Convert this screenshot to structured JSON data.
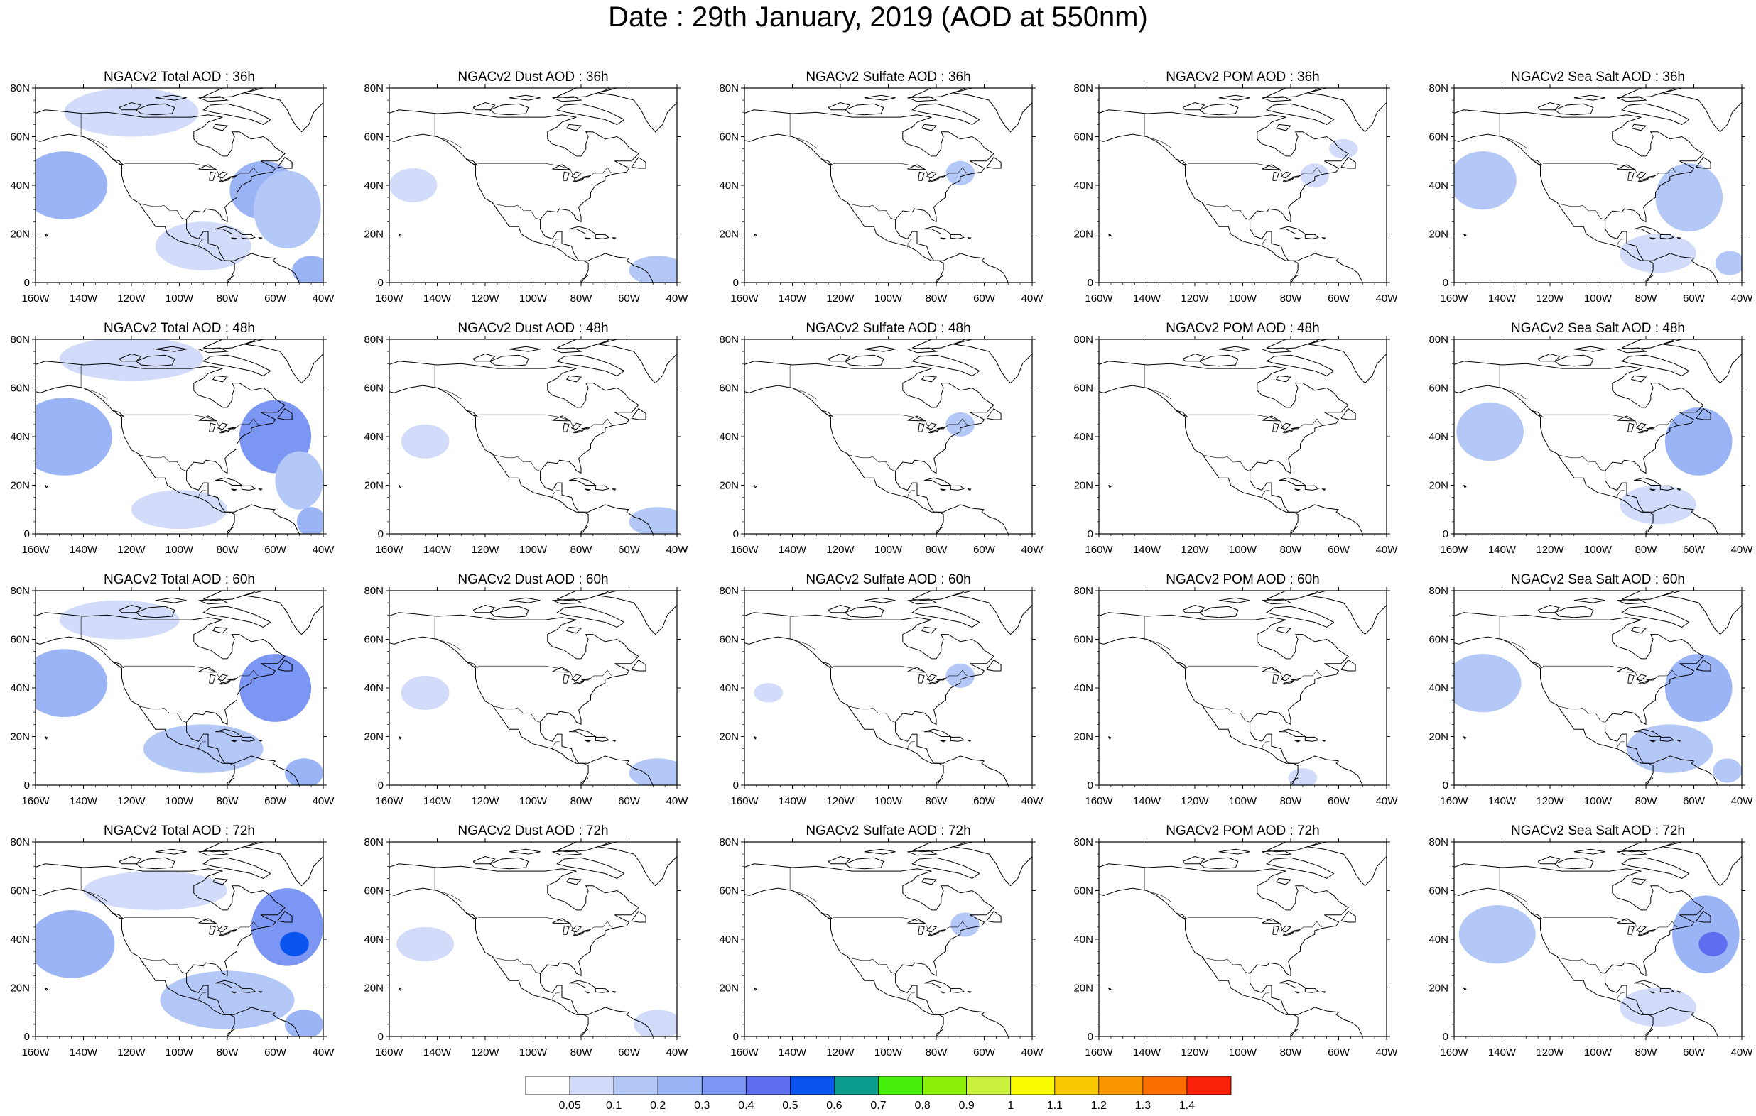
{
  "title": "Date : 29th January, 2019 (AOD at 550nm)",
  "map": {
    "lat_ticks": [
      "80N",
      "60N",
      "40N",
      "20N",
      "0"
    ],
    "lon_ticks": [
      "160W",
      "140W",
      "120W",
      "100W",
      "80W",
      "60W",
      "40W"
    ],
    "lon_range": [
      -160,
      -40
    ],
    "lat_range": [
      0,
      80
    ]
  },
  "panels": [
    {
      "title": "NGACv2 Total AOD : 36h",
      "species": "total",
      "lead": "36h"
    },
    {
      "title": "NGACv2 Dust AOD : 36h",
      "species": "dust",
      "lead": "36h"
    },
    {
      "title": "NGACv2 Sulfate AOD : 36h",
      "species": "sulfate",
      "lead": "36h"
    },
    {
      "title": "NGACv2 POM AOD : 36h",
      "species": "pom",
      "lead": "36h"
    },
    {
      "title": "NGACv2 Sea Salt AOD : 36h",
      "species": "seasalt",
      "lead": "36h"
    },
    {
      "title": "NGACv2 Total AOD : 48h",
      "species": "total",
      "lead": "48h"
    },
    {
      "title": "NGACv2 Dust AOD : 48h",
      "species": "dust",
      "lead": "48h"
    },
    {
      "title": "NGACv2 Sulfate AOD : 48h",
      "species": "sulfate",
      "lead": "48h"
    },
    {
      "title": "NGACv2 POM AOD : 48h",
      "species": "pom",
      "lead": "48h"
    },
    {
      "title": "NGACv2 Sea Salt AOD : 48h",
      "species": "seasalt",
      "lead": "48h"
    },
    {
      "title": "NGACv2 Total AOD : 60h",
      "species": "total",
      "lead": "60h"
    },
    {
      "title": "NGACv2 Dust AOD : 60h",
      "species": "dust",
      "lead": "60h"
    },
    {
      "title": "NGACv2 Sulfate AOD : 60h",
      "species": "sulfate",
      "lead": "60h"
    },
    {
      "title": "NGACv2 POM AOD : 60h",
      "species": "pom",
      "lead": "60h"
    },
    {
      "title": "NGACv2 Sea Salt AOD : 60h",
      "species": "seasalt",
      "lead": "60h"
    },
    {
      "title": "NGACv2 Total AOD : 72h",
      "species": "total",
      "lead": "72h"
    },
    {
      "title": "NGACv2 Dust AOD : 72h",
      "species": "dust",
      "lead": "72h"
    },
    {
      "title": "NGACv2 Sulfate AOD : 72h",
      "species": "sulfate",
      "lead": "72h"
    },
    {
      "title": "NGACv2 POM AOD : 72h",
      "species": "pom",
      "lead": "72h"
    },
    {
      "title": "NGACv2 Sea Salt  AOD : 72h",
      "species": "seasalt",
      "lead": "72h"
    }
  ],
  "colorbar": {
    "colors": [
      "#ffffff",
      "#d2dcfa",
      "#b4c8f8",
      "#9ab4f6",
      "#7c96f4",
      "#5f6ef0",
      "#0a55f0",
      "#0a9b8c",
      "#46f00a",
      "#8cf00a",
      "#c8f03c",
      "#fafa00",
      "#fac800",
      "#fa9600",
      "#fa6e00",
      "#fa230a"
    ],
    "labels": [
      "0.05",
      "0.1",
      "0.2",
      "0.3",
      "0.4",
      "0.5",
      "0.6",
      "0.7",
      "0.8",
      "0.9",
      "1",
      "1.1",
      "1.2",
      "1.3",
      "1.4"
    ]
  },
  "chart_data": {
    "type": "heatmap",
    "title": "Date : 29th January, 2019 (AOD at 550nm)",
    "variable": "AOD at 550nm",
    "x_range": [
      -160,
      -40
    ],
    "y_range": [
      0,
      80
    ],
    "levels": [
      0.05,
      0.1,
      0.2,
      0.3,
      0.4,
      0.5,
      0.6,
      0.7,
      0.8,
      0.9,
      1,
      1.1,
      1.2,
      1.3,
      1.4
    ],
    "blobs": [
      {
        "panel": 0,
        "lon": -148,
        "lat": 40,
        "rlon": 18,
        "rlat": 14,
        "level": 3
      },
      {
        "panel": 0,
        "lon": -65,
        "lat": 38,
        "rlon": 14,
        "rlat": 12,
        "level": 3
      },
      {
        "panel": 0,
        "lon": -55,
        "lat": 30,
        "rlon": 14,
        "rlat": 16,
        "level": 2
      },
      {
        "panel": 0,
        "lon": -120,
        "lat": 70,
        "rlon": 28,
        "rlat": 10,
        "level": 1
      },
      {
        "panel": 0,
        "lon": -90,
        "lat": 15,
        "rlon": 20,
        "rlat": 10,
        "level": 1
      },
      {
        "panel": 0,
        "lon": -45,
        "lat": 5,
        "rlon": 8,
        "rlat": 6,
        "level": 3
      },
      {
        "panel": 1,
        "lon": -150,
        "lat": 40,
        "rlon": 10,
        "rlat": 7,
        "level": 1
      },
      {
        "panel": 1,
        "lon": -48,
        "lat": 5,
        "rlon": 12,
        "rlat": 6,
        "level": 2
      },
      {
        "panel": 2,
        "lon": -70,
        "lat": 45,
        "rlon": 6,
        "rlat": 5,
        "level": 2
      },
      {
        "panel": 3,
        "lon": -70,
        "lat": 44,
        "rlon": 6,
        "rlat": 5,
        "level": 1
      },
      {
        "panel": 3,
        "lon": -58,
        "lat": 55,
        "rlon": 6,
        "rlat": 4,
        "level": 1
      },
      {
        "panel": 4,
        "lon": -148,
        "lat": 42,
        "rlon": 14,
        "rlat": 12,
        "level": 2
      },
      {
        "panel": 4,
        "lon": -62,
        "lat": 35,
        "rlon": 14,
        "rlat": 14,
        "level": 2
      },
      {
        "panel": 4,
        "lon": -75,
        "lat": 12,
        "rlon": 16,
        "rlat": 8,
        "level": 1
      },
      {
        "panel": 4,
        "lon": -45,
        "lat": 8,
        "rlon": 6,
        "rlat": 5,
        "level": 2
      },
      {
        "panel": 5,
        "lon": -148,
        "lat": 40,
        "rlon": 20,
        "rlat": 16,
        "level": 3
      },
      {
        "panel": 5,
        "lon": -60,
        "lat": 40,
        "rlon": 15,
        "rlat": 15,
        "level": 4
      },
      {
        "panel": 5,
        "lon": -50,
        "lat": 22,
        "rlon": 10,
        "rlat": 12,
        "level": 2
      },
      {
        "panel": 5,
        "lon": -120,
        "lat": 72,
        "rlon": 30,
        "rlat": 9,
        "level": 1
      },
      {
        "panel": 5,
        "lon": -100,
        "lat": 10,
        "rlon": 20,
        "rlat": 8,
        "level": 1
      },
      {
        "panel": 5,
        "lon": -45,
        "lat": 5,
        "rlon": 6,
        "rlat": 6,
        "level": 3
      },
      {
        "panel": 6,
        "lon": -145,
        "lat": 38,
        "rlon": 10,
        "rlat": 7,
        "level": 1
      },
      {
        "panel": 6,
        "lon": -48,
        "lat": 5,
        "rlon": 12,
        "rlat": 6,
        "level": 2
      },
      {
        "panel": 7,
        "lon": -70,
        "lat": 45,
        "rlon": 6,
        "rlat": 5,
        "level": 2
      },
      {
        "panel": 9,
        "lon": -145,
        "lat": 42,
        "rlon": 14,
        "rlat": 12,
        "level": 2
      },
      {
        "panel": 9,
        "lon": -58,
        "lat": 38,
        "rlon": 14,
        "rlat": 14,
        "level": 3
      },
      {
        "panel": 9,
        "lon": -75,
        "lat": 12,
        "rlon": 16,
        "rlat": 8,
        "level": 1
      },
      {
        "panel": 10,
        "lon": -148,
        "lat": 42,
        "rlon": 18,
        "rlat": 14,
        "level": 3
      },
      {
        "panel": 10,
        "lon": -60,
        "lat": 40,
        "rlon": 15,
        "rlat": 14,
        "level": 4
      },
      {
        "panel": 10,
        "lon": -90,
        "lat": 15,
        "rlon": 25,
        "rlat": 10,
        "level": 2
      },
      {
        "panel": 10,
        "lon": -125,
        "lat": 68,
        "rlon": 25,
        "rlat": 8,
        "level": 1
      },
      {
        "panel": 10,
        "lon": -48,
        "lat": 5,
        "rlon": 8,
        "rlat": 6,
        "level": 3
      },
      {
        "panel": 11,
        "lon": -145,
        "lat": 38,
        "rlon": 10,
        "rlat": 7,
        "level": 1
      },
      {
        "panel": 11,
        "lon": -48,
        "lat": 5,
        "rlon": 12,
        "rlat": 6,
        "level": 2
      },
      {
        "panel": 12,
        "lon": -70,
        "lat": 45,
        "rlon": 6,
        "rlat": 5,
        "level": 2
      },
      {
        "panel": 12,
        "lon": -150,
        "lat": 38,
        "rlon": 6,
        "rlat": 4,
        "level": 1
      },
      {
        "panel": 13,
        "lon": -75,
        "lat": 3,
        "rlon": 6,
        "rlat": 4,
        "level": 1
      },
      {
        "panel": 14,
        "lon": -148,
        "lat": 42,
        "rlon": 16,
        "rlat": 12,
        "level": 2
      },
      {
        "panel": 14,
        "lon": -58,
        "lat": 40,
        "rlon": 14,
        "rlat": 14,
        "level": 3
      },
      {
        "panel": 14,
        "lon": -70,
        "lat": 15,
        "rlon": 18,
        "rlat": 10,
        "level": 2
      },
      {
        "panel": 14,
        "lon": -46,
        "lat": 6,
        "rlon": 6,
        "rlat": 5,
        "level": 2
      },
      {
        "panel": 15,
        "lon": -145,
        "lat": 38,
        "rlon": 18,
        "rlat": 14,
        "level": 3
      },
      {
        "panel": 15,
        "lon": -55,
        "lat": 45,
        "rlon": 15,
        "rlat": 16,
        "level": 4
      },
      {
        "panel": 15,
        "lon": -52,
        "lat": 38,
        "rlon": 6,
        "rlat": 5,
        "level": 6
      },
      {
        "panel": 15,
        "lon": -80,
        "lat": 15,
        "rlon": 28,
        "rlat": 12,
        "level": 2
      },
      {
        "panel": 15,
        "lon": -110,
        "lat": 60,
        "rlon": 30,
        "rlat": 8,
        "level": 1
      },
      {
        "panel": 15,
        "lon": -48,
        "lat": 5,
        "rlon": 8,
        "rlat": 6,
        "level": 3
      },
      {
        "panel": 16,
        "lon": -145,
        "lat": 38,
        "rlon": 12,
        "rlat": 7,
        "level": 1
      },
      {
        "panel": 16,
        "lon": -48,
        "lat": 5,
        "rlon": 10,
        "rlat": 6,
        "level": 1
      },
      {
        "panel": 17,
        "lon": -68,
        "lat": 46,
        "rlon": 6,
        "rlat": 5,
        "level": 2
      },
      {
        "panel": 19,
        "lon": -142,
        "lat": 42,
        "rlon": 16,
        "rlat": 12,
        "level": 2
      },
      {
        "panel": 19,
        "lon": -55,
        "lat": 42,
        "rlon": 14,
        "rlat": 16,
        "level": 3
      },
      {
        "panel": 19,
        "lon": -52,
        "lat": 38,
        "rlon": 6,
        "rlat": 5,
        "level": 5
      },
      {
        "panel": 19,
        "lon": -75,
        "lat": 12,
        "rlon": 16,
        "rlat": 8,
        "level": 1
      }
    ]
  }
}
